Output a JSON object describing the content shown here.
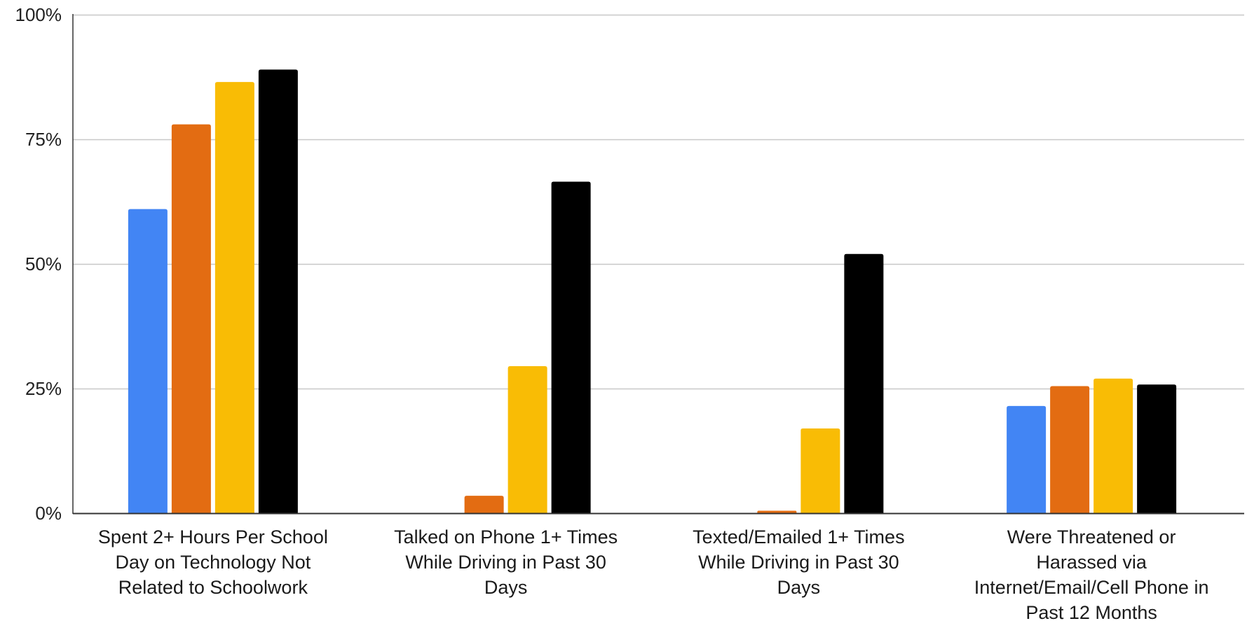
{
  "chart_data": {
    "type": "bar",
    "title": "",
    "xlabel": "",
    "ylabel": "",
    "ylim": [
      0,
      100
    ],
    "y_ticks": [
      {
        "value": 0,
        "label": "0%"
      },
      {
        "value": 25,
        "label": "25%"
      },
      {
        "value": 50,
        "label": "50%"
      },
      {
        "value": 75,
        "label": "75%"
      },
      {
        "value": 100,
        "label": "100%"
      }
    ],
    "grid": true,
    "legend": "none",
    "categories": [
      [
        "Spent 2+ Hours Per School",
        "Day on Technology Not",
        "Related to Schoolwork"
      ],
      [
        "Talked on Phone 1+ Times",
        "While Driving in Past 30",
        "Days"
      ],
      [
        "Texted/Emailed 1+ Times",
        "While Driving in Past 30",
        "Days"
      ],
      [
        "Were Threatened or",
        "Harassed via",
        "Internet/Email/Cell Phone in",
        "Past 12 Months"
      ]
    ],
    "series": [
      {
        "color": "#4285F4",
        "values": [
          61,
          null,
          null,
          21.5
        ]
      },
      {
        "color": "#E36C12",
        "values": [
          78,
          3.5,
          0.5,
          25.5
        ]
      },
      {
        "color": "#F9BC05",
        "values": [
          86.5,
          29.5,
          17,
          27
        ]
      },
      {
        "color": "#000000",
        "values": [
          89,
          66.5,
          52,
          25.8
        ]
      }
    ]
  }
}
